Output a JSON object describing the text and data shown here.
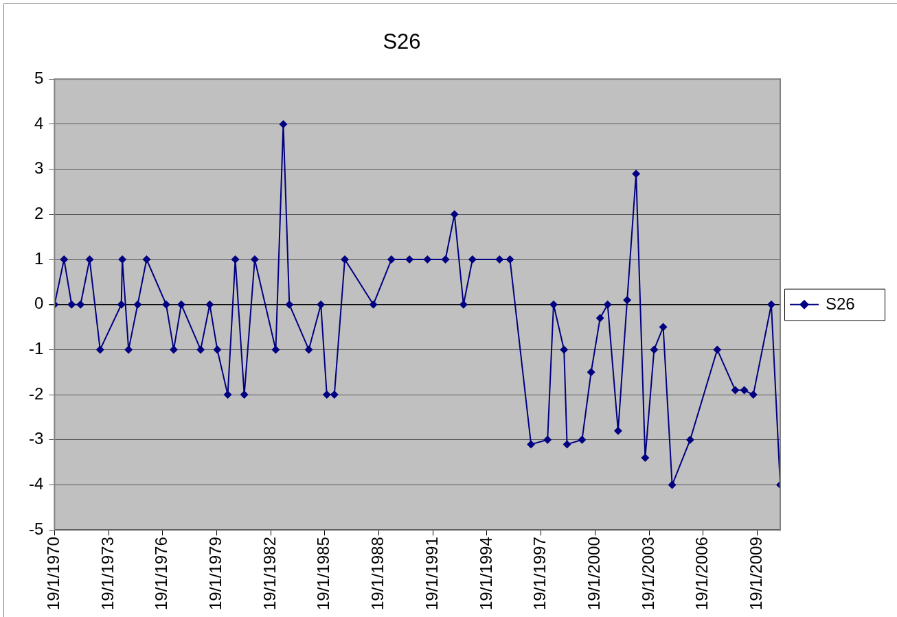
{
  "chart_data": {
    "type": "line",
    "title": "S26",
    "x": [
      "1970-01-19",
      "1970-08",
      "1971-01",
      "1971-07",
      "1972-01",
      "1972-08",
      "1973-10-05",
      "1973-10-25",
      "1974-03",
      "1974-09",
      "1975-03",
      "1976-04",
      "1976-09",
      "1977-02",
      "1978-03",
      "1978-09",
      "1979-02",
      "1979-09",
      "1980-02",
      "1980-08",
      "1981-03",
      "1982-05",
      "1982-10",
      "1983-02",
      "1984-03",
      "1984-11",
      "1985-03",
      "1985-08",
      "1986-03",
      "1987-10",
      "1988-10",
      "1989-10",
      "1990-10",
      "1991-10",
      "1992-04",
      "1992-10",
      "1993-04",
      "1994-10",
      "1995-05",
      "1996-07",
      "1997-06",
      "1997-10",
      "1998-05",
      "1998-07",
      "1999-05",
      "1999-11",
      "2000-05",
      "2000-10",
      "2001-05",
      "2001-11",
      "2002-05",
      "2002-11",
      "2003-05",
      "2003-11",
      "2004-05",
      "2005-05",
      "2006-11",
      "2007-11",
      "2008-05",
      "2008-11",
      "2009-11",
      "2010-05"
    ],
    "series": [
      {
        "name": "S26",
        "color": "#000080",
        "values": [
          0,
          1,
          0,
          0,
          1,
          -1,
          0,
          1,
          -1,
          0,
          1,
          0,
          -1,
          0,
          -1,
          0,
          -1,
          -2,
          1,
          -2,
          1,
          -1,
          4,
          0,
          -1,
          0,
          -2,
          -2,
          1,
          0,
          1,
          1,
          1,
          1,
          2,
          0,
          1,
          1,
          1,
          -3.1,
          -3,
          0,
          -1,
          -3.1,
          -3,
          -1.5,
          -0.3,
          0,
          -2.8,
          0.1,
          2.9,
          -3.4,
          -1,
          -0.5,
          -4,
          -3,
          -1,
          -1.9,
          -1.9,
          -2,
          0,
          -4
        ]
      }
    ],
    "xlim": [
      "1970-01-19",
      "2010-05"
    ],
    "xticks": [
      {
        "value": "1970-01-19",
        "label": "19/1/1970"
      },
      {
        "value": "1973-01-19",
        "label": "19/1/1973"
      },
      {
        "value": "1976-01-19",
        "label": "19/1/1976"
      },
      {
        "value": "1979-01-19",
        "label": "19/1/1979"
      },
      {
        "value": "1982-01-19",
        "label": "19/1/1982"
      },
      {
        "value": "1985-01-19",
        "label": "19/1/1985"
      },
      {
        "value": "1988-01-19",
        "label": "19/1/1988"
      },
      {
        "value": "1991-01-19",
        "label": "19/1/1991"
      },
      {
        "value": "1994-01-19",
        "label": "19/1/1994"
      },
      {
        "value": "1997-01-19",
        "label": "19/1/1997"
      },
      {
        "value": "2000-01-19",
        "label": "19/1/2000"
      },
      {
        "value": "2003-01-19",
        "label": "19/1/2003"
      },
      {
        "value": "2006-01-19",
        "label": "19/1/2006"
      },
      {
        "value": "2009-01-19",
        "label": "19/1/2009"
      }
    ],
    "ylim": [
      -5,
      5
    ],
    "yticks": [
      -5,
      -4,
      -3,
      -2,
      -1,
      0,
      1,
      2,
      3,
      4,
      5
    ],
    "grid": "y",
    "legend": "right",
    "marker": "diamond",
    "line_style": "solid"
  }
}
